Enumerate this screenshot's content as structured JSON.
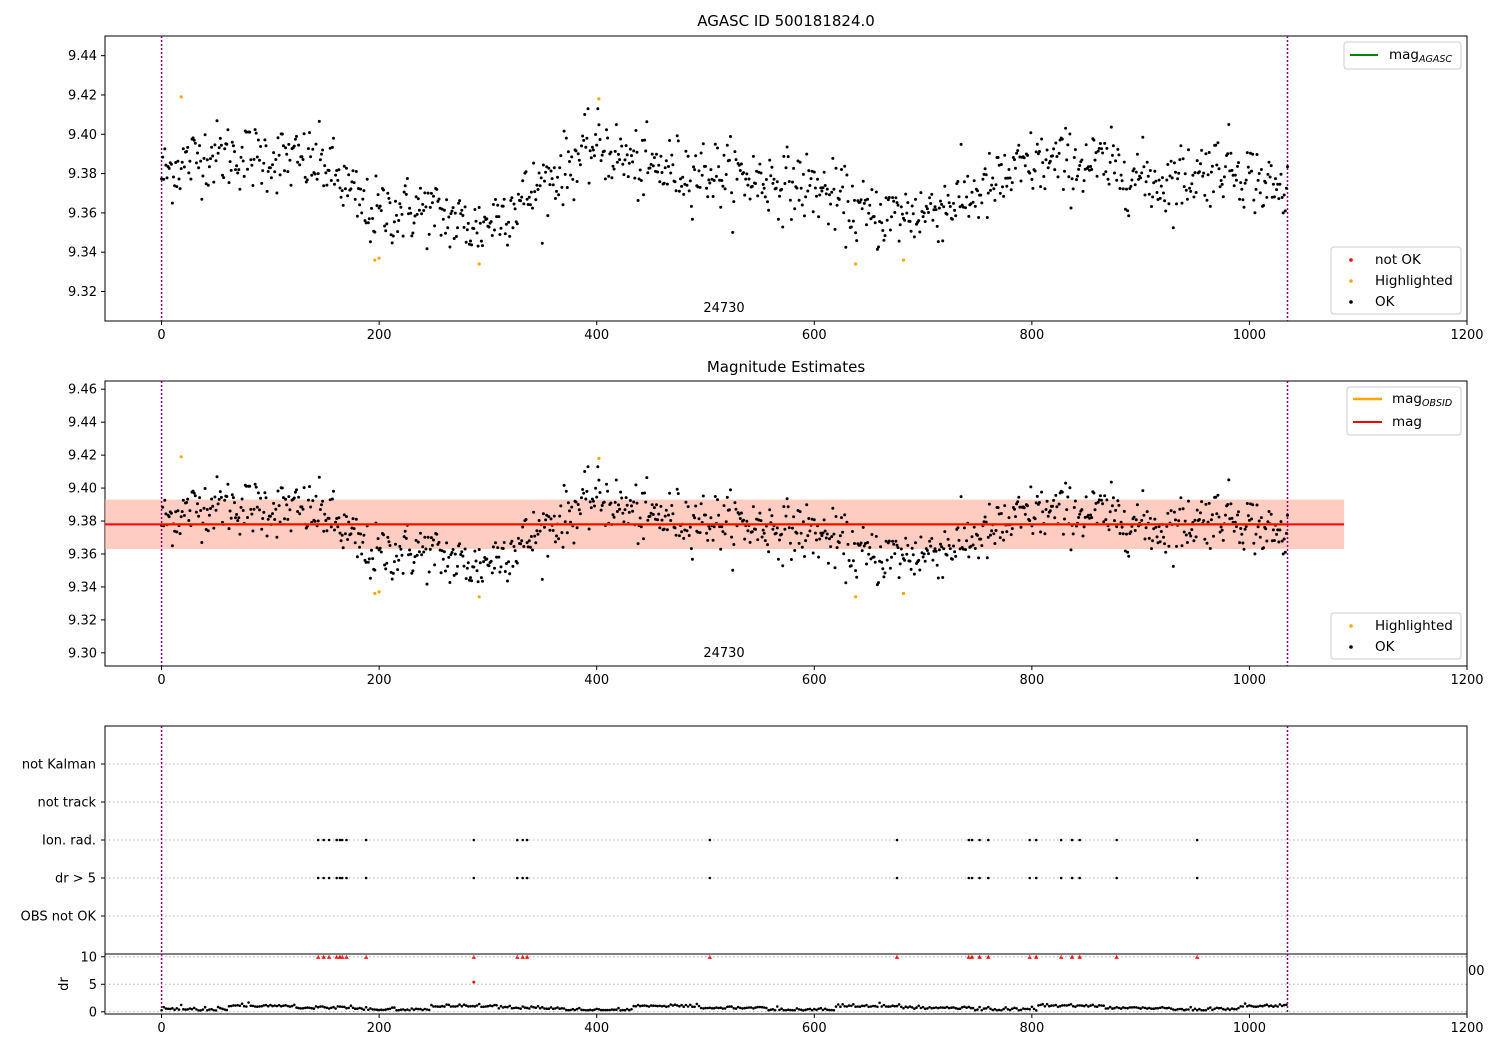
{
  "figure": {
    "title_top": "AGASC ID 500181824.0",
    "title_mid": "Magnitude Estimates"
  },
  "colors": {
    "ok": "#000000",
    "highlighted": "#ffa500",
    "not_ok": "#ff0000",
    "mag_agasc": "#008000",
    "mag_obsid": "#ffa500",
    "mag": "#ff0000",
    "band_obsid": "#ffa07a",
    "band_mag": "#ffc0cb",
    "obs_boundary": "#800080"
  },
  "chart_data": [
    {
      "type": "scatter",
      "title": "AGASC ID 500181824.0",
      "xlim": [
        -52,
        1200
      ],
      "ylim": [
        9.305,
        9.45
      ],
      "xticks": [
        0,
        200,
        400,
        600,
        800,
        1000,
        1200
      ],
      "yticks": [
        9.32,
        9.34,
        9.36,
        9.38,
        9.4,
        9.42,
        9.44
      ],
      "annotation": "24730",
      "legend_lines": [
        {
          "name": "mag",
          "sub": "AGASC",
          "color": "#008000",
          "position": "top-right"
        }
      ],
      "legend_points": [
        {
          "name": "not OK",
          "color": "#ff0000"
        },
        {
          "name": "Highlighted",
          "color": "#ffa500"
        },
        {
          "name": "OK",
          "color": "#000000"
        }
      ],
      "vlines": [
        0,
        1035
      ],
      "highlighted_points": [
        [
          18,
          9.419
        ],
        [
          196,
          9.336
        ],
        [
          200,
          9.337
        ],
        [
          292,
          9.334
        ],
        [
          402,
          9.418
        ],
        [
          638,
          9.334
        ],
        [
          682,
          9.336
        ]
      ],
      "series_trend": [
        [
          0,
          9.38
        ],
        [
          40,
          9.39
        ],
        [
          100,
          9.388
        ],
        [
          150,
          9.385
        ],
        [
          190,
          9.36
        ],
        [
          240,
          9.362
        ],
        [
          290,
          9.352
        ],
        [
          340,
          9.37
        ],
        [
          400,
          9.395
        ],
        [
          440,
          9.383
        ],
        [
          500,
          9.381
        ],
        [
          560,
          9.376
        ],
        [
          600,
          9.373
        ],
        [
          650,
          9.358
        ],
        [
          700,
          9.36
        ],
        [
          760,
          9.372
        ],
        [
          800,
          9.385
        ],
        [
          860,
          9.385
        ],
        [
          920,
          9.375
        ],
        [
          980,
          9.385
        ],
        [
          1030,
          9.37
        ]
      ]
    },
    {
      "type": "scatter",
      "title": "Magnitude Estimates",
      "xlim": [
        -52,
        1200
      ],
      "ylim": [
        9.292,
        9.465
      ],
      "xticks": [
        0,
        200,
        400,
        600,
        800,
        1000,
        1200
      ],
      "yticks": [
        9.3,
        9.32,
        9.34,
        9.36,
        9.38,
        9.4,
        9.42,
        9.44,
        9.46
      ],
      "annotation": "24730",
      "mag_obsid": 9.378,
      "mag_obsid_band": [
        9.363,
        9.393
      ],
      "mag": 9.378,
      "mag_band": [
        9.363,
        9.393
      ],
      "band_x_extent": [
        -52,
        1087
      ],
      "legend_lines": [
        {
          "name": "mag",
          "sub": "OBSID",
          "color": "#ffa500"
        },
        {
          "name": "mag",
          "sub": "",
          "color": "#ff0000"
        }
      ],
      "legend_points": [
        {
          "name": "Highlighted",
          "color": "#ffa500"
        },
        {
          "name": "OK",
          "color": "#000000"
        }
      ],
      "vlines": [
        0,
        1035
      ]
    },
    {
      "type": "scatter",
      "categories": [
        "OBS not OK",
        "dr > 5",
        "Ion. rad.",
        "not track",
        "not Kalman"
      ],
      "flag_x": [
        144,
        149,
        154,
        161,
        164,
        166,
        170,
        188,
        287,
        327,
        332,
        336,
        504,
        676,
        742,
        745,
        752,
        760,
        798,
        804,
        827,
        837,
        844,
        878,
        952
      ],
      "xlim": [
        -52,
        1200
      ],
      "vlines": [
        0,
        1035
      ]
    },
    {
      "type": "scatter",
      "ylabel": "dr",
      "xlim": [
        -52,
        1200
      ],
      "ylim": [
        -0.4,
        10.5
      ],
      "xticks": [
        0,
        200,
        400,
        600,
        800,
        1000,
        1200
      ],
      "yticks": [
        0,
        5,
        10
      ],
      "clipped_tick_fragment": "00",
      "capped_value": 10,
      "outlier": [
        287,
        5.4
      ],
      "vlines": [
        0,
        1035
      ]
    }
  ]
}
